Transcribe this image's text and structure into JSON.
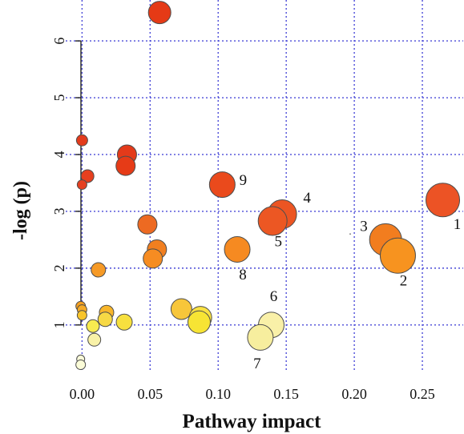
{
  "chart_data": {
    "type": "scatter",
    "xlabel": "Pathway impact",
    "ylabel": "-log (p)",
    "xlim": [
      -0.012,
      0.28
    ],
    "ylim": [
      0.18,
      6.72
    ],
    "xticks": [
      "0.00",
      "0.05",
      "0.10",
      "0.15",
      "0.20",
      "0.25"
    ],
    "yticks": [
      "1",
      "2",
      "3",
      "4",
      "5",
      "6"
    ],
    "grid": true,
    "points": [
      {
        "x": 0.057,
        "y": 6.5,
        "size": 14,
        "color": "#e53a16"
      },
      {
        "x": 0.0,
        "y": 4.25,
        "size": 7,
        "color": "#e33b1c"
      },
      {
        "x": 0.033,
        "y": 4.0,
        "size": 12,
        "color": "#e43a1a"
      },
      {
        "x": 0.032,
        "y": 3.8,
        "size": 12,
        "color": "#e63b17"
      },
      {
        "x": 0.004,
        "y": 3.62,
        "size": 8,
        "color": "#e63f1e"
      },
      {
        "x": 0.0,
        "y": 3.47,
        "size": 6,
        "color": "#e54020"
      },
      {
        "x": 0.103,
        "y": 3.47,
        "size": 16,
        "color": "#ea4a1c",
        "label": "9"
      },
      {
        "x": 0.147,
        "y": 2.95,
        "size": 18,
        "color": "#ec5523",
        "label": "4"
      },
      {
        "x": 0.14,
        "y": 2.83,
        "size": 18,
        "color": "#ec5723",
        "label": "5"
      },
      {
        "x": 0.265,
        "y": 3.2,
        "size": 21,
        "color": "#ec5325",
        "label": "1"
      },
      {
        "x": 0.197,
        "y": 2.6,
        "size": 1,
        "color": "#888888",
        "label": "3"
      },
      {
        "x": 0.223,
        "y": 2.5,
        "size": 20,
        "color": "#f27d1f"
      },
      {
        "x": 0.232,
        "y": 2.22,
        "size": 22,
        "color": "#f7931f",
        "label": "2"
      },
      {
        "x": 0.048,
        "y": 2.77,
        "size": 12,
        "color": "#ed6a22"
      },
      {
        "x": 0.055,
        "y": 2.33,
        "size": 12,
        "color": "#f17f20"
      },
      {
        "x": 0.052,
        "y": 2.17,
        "size": 12,
        "color": "#f68c22"
      },
      {
        "x": 0.114,
        "y": 2.33,
        "size": 16,
        "color": "#f68a21",
        "label": "8"
      },
      {
        "x": 0.012,
        "y": 1.97,
        "size": 9,
        "color": "#f69a26"
      },
      {
        "x": -0.001,
        "y": 1.33,
        "size": 6,
        "color": "#f5a021"
      },
      {
        "x": 0.0,
        "y": 1.27,
        "size": 6,
        "color": "#f6ab27"
      },
      {
        "x": 0.0,
        "y": 1.17,
        "size": 6,
        "color": "#f9c52b"
      },
      {
        "x": 0.018,
        "y": 1.22,
        "size": 9,
        "color": "#f8b62a"
      },
      {
        "x": 0.073,
        "y": 1.28,
        "size": 13,
        "color": "#f7c63a"
      },
      {
        "x": 0.087,
        "y": 1.13,
        "size": 14,
        "color": "#f9e142"
      },
      {
        "x": 0.086,
        "y": 1.05,
        "size": 14,
        "color": "#f7e434"
      },
      {
        "x": 0.017,
        "y": 1.1,
        "size": 9,
        "color": "#f7d945"
      },
      {
        "x": 0.031,
        "y": 1.05,
        "size": 10,
        "color": "#f7e03e"
      },
      {
        "x": 0.008,
        "y": 0.98,
        "size": 8,
        "color": "#f8eb50"
      },
      {
        "x": 0.139,
        "y": 1.0,
        "size": 16,
        "color": "#f9f0a8",
        "label": "6"
      },
      {
        "x": 0.131,
        "y": 0.78,
        "size": 16,
        "color": "#f7ee9e",
        "label": "7"
      },
      {
        "x": 0.009,
        "y": 0.74,
        "size": 8,
        "color": "#f9f2a8"
      },
      {
        "x": -0.001,
        "y": 0.4,
        "size": 5,
        "color": "#fafbd9"
      },
      {
        "x": -0.001,
        "y": 0.3,
        "size": 6,
        "color": "#fbfcd8"
      }
    ]
  }
}
